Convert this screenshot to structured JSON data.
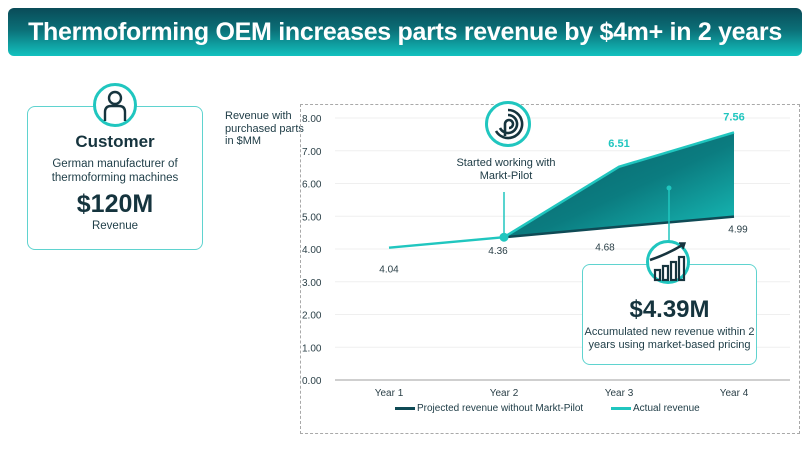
{
  "banner": {
    "title": "Thermoforming OEM increases parts revenue by $4m+ in 2 years"
  },
  "customer": {
    "icon": "person-icon",
    "title": "Customer",
    "description_line1": "German manufacturer of",
    "description_line2": "thermoforming machines",
    "value": "$120M",
    "value_label": "Revenue"
  },
  "annotation": {
    "logo": "markt-pilot-logo-icon",
    "line1": "Started working with",
    "line2": "Markt-Pilot"
  },
  "result": {
    "icon": "growth-chart-icon",
    "value": "$4.39M",
    "line1": "Accumulated new revenue within 2",
    "line2": "years using market-based pricing"
  },
  "colors": {
    "accent": "#20c6bf",
    "dark": "#0f4a55",
    "fill_top": "#0a6f75",
    "fill_bottom": "#15b7b3"
  },
  "chart_data": {
    "type": "area",
    "title": "",
    "ylabel": "Revenue with purchased parts in $MM",
    "xlabel": "",
    "categories": [
      "Year 1",
      "Year 2",
      "Year 3",
      "Year 4"
    ],
    "ylim": [
      0,
      8
    ],
    "yticks": [
      "0.00",
      "1.00",
      "2.00",
      "3.00",
      "4.00",
      "5.00",
      "6.00",
      "7.00",
      "8.00"
    ],
    "grid": true,
    "legend_position": "bottom",
    "series": [
      {
        "name": "Projected revenue without Markt-Pilot",
        "color": "#0f4a55",
        "values": [
          null,
          4.36,
          4.68,
          4.99
        ],
        "labels": [
          "",
          "",
          "4.68",
          "4.99"
        ]
      },
      {
        "name": "Actual revenue",
        "color": "#20c6bf",
        "values": [
          4.04,
          4.36,
          6.51,
          7.56
        ],
        "labels": [
          "4.04",
          "4.36",
          "6.51",
          "7.56"
        ]
      }
    ]
  }
}
